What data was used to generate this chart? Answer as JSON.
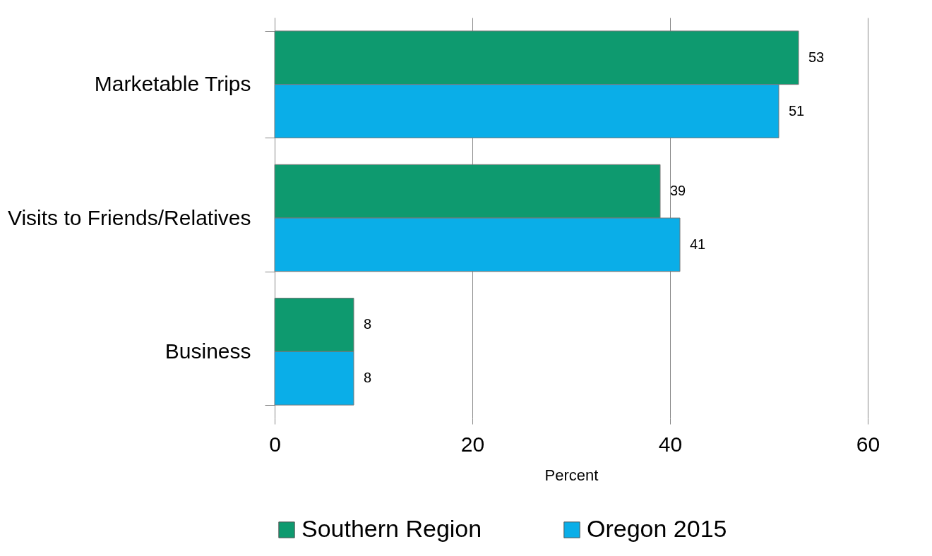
{
  "chart_data": {
    "type": "bar",
    "orientation": "horizontal",
    "categories": [
      "Marketable Trips",
      "Visits to Friends/Relatives",
      "Business"
    ],
    "series": [
      {
        "name": "Southern Region",
        "color": "#0e9a6f",
        "values": [
          53,
          39,
          8
        ]
      },
      {
        "name": "Oregon 2015",
        "color": "#0aaee8",
        "values": [
          51,
          41,
          8
        ]
      }
    ],
    "xlabel": "Percent",
    "xlim": [
      0,
      60
    ],
    "xticks": [
      0,
      20,
      40,
      60
    ],
    "grid": "x",
    "legend": "bottom",
    "data_labels": true
  }
}
